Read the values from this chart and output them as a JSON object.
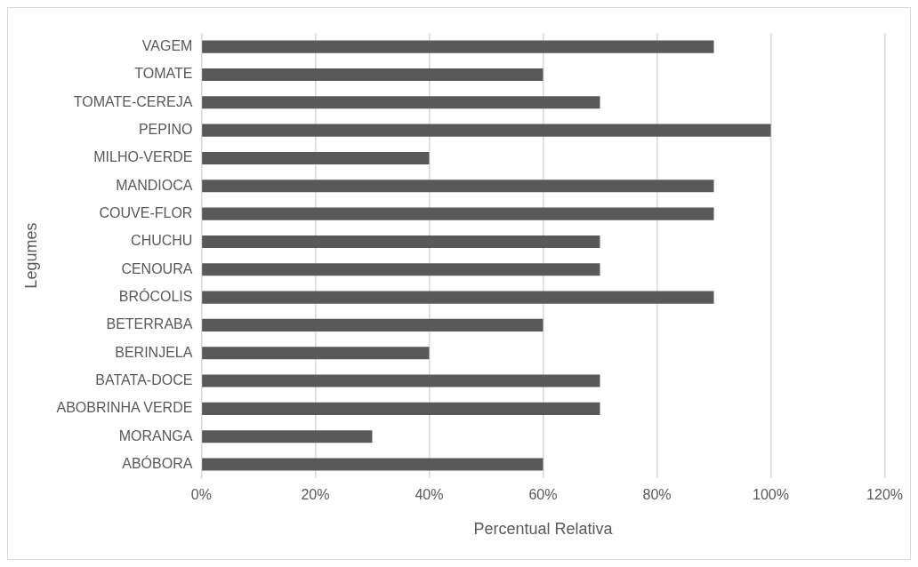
{
  "chart_data": {
    "type": "bar",
    "orientation": "horizontal",
    "xlabel": "Percentual Relativa",
    "ylabel": "Legumes",
    "categories": [
      "VAGEM",
      "TOMATE",
      "TOMATE-CEREJA",
      "PEPINO",
      "MILHO-VERDE",
      "MANDIOCA",
      "COUVE-FLOR",
      "CHUCHU",
      "CENOURA",
      "BRÓCOLIS",
      "BETERRABA",
      "BERINJELA",
      "BATATA-DOCE",
      "ABOBRINHA VERDE",
      "MORANGA",
      "ABÓBORA"
    ],
    "values": [
      90,
      60,
      70,
      100,
      40,
      90,
      90,
      70,
      70,
      90,
      60,
      40,
      70,
      70,
      30,
      60
    ],
    "color": "#595959",
    "xlim": [
      0,
      120
    ],
    "xticks": [
      {
        "value": 0,
        "label": "0%"
      },
      {
        "value": 20,
        "label": "20%"
      },
      {
        "value": 40,
        "label": "40%"
      },
      {
        "value": 60,
        "label": "60%"
      },
      {
        "value": 80,
        "label": "80%"
      },
      {
        "value": 100,
        "label": "100%"
      },
      {
        "value": 120,
        "label": "120%"
      }
    ],
    "grid": "x",
    "legend": false
  }
}
